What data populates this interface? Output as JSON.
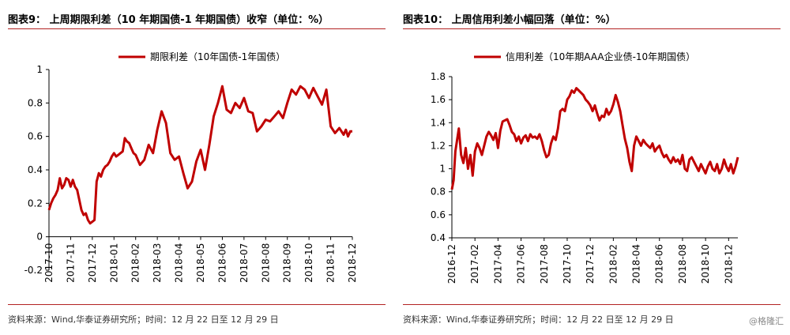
{
  "colors": {
    "line": "#c00000",
    "rule": "#b22222",
    "axis": "#000000"
  },
  "watermark": "@格隆汇",
  "chart_data": [
    {
      "type": "line",
      "figure_title": "图表9：   上周期限利差（10 年期国债-1 年期国债）收窄（单位：%）",
      "title": "",
      "source": "资料来源：Wind,华泰证券研究所；时间：12 月 22 日至 12 月 29 日",
      "xlabel": "",
      "ylabel": "",
      "legend": {
        "position": "top",
        "entries": [
          "期限利差（10年国债-1年国债）"
        ]
      },
      "grid": false,
      "ylim": [
        -0.2,
        1
      ],
      "yticks": [
        "-0.2",
        "0",
        "0.2",
        "0.4",
        "0.6",
        "0.8",
        "1"
      ],
      "xticks": [
        "2017-10",
        "2017-11",
        "2017-12",
        "2018-01",
        "2018-02",
        "2018-03",
        "2018-04",
        "2018-05",
        "2018-06",
        "2018-07",
        "2018-08",
        "2018-09",
        "2018-10",
        "2018-11",
        "2018-12"
      ],
      "series": [
        {
          "name": "期限利差（10年国债-1年国债）",
          "x": [
            0,
            0.1,
            0.2,
            0.3,
            0.4,
            0.5,
            0.6,
            0.7,
            0.8,
            0.9,
            1.0,
            1.1,
            1.2,
            1.3,
            1.4,
            1.5,
            1.6,
            1.7,
            1.8,
            1.9,
            2.0,
            2.1,
            2.2,
            2.3,
            2.4,
            2.5,
            2.6,
            2.7,
            2.8,
            2.9,
            3.0,
            3.1,
            3.2,
            3.3,
            3.4,
            3.5,
            3.6,
            3.7,
            3.8,
            3.9,
            4.0,
            4.2,
            4.4,
            4.6,
            4.8,
            5.0,
            5.2,
            5.4,
            5.6,
            5.8,
            6.0,
            6.2,
            6.4,
            6.6,
            6.8,
            7.0,
            7.2,
            7.4,
            7.6,
            7.8,
            8.0,
            8.2,
            8.4,
            8.6,
            8.8,
            9.0,
            9.2,
            9.4,
            9.6,
            9.8,
            10.0,
            10.2,
            10.4,
            10.6,
            10.8,
            11.0,
            11.2,
            11.4,
            11.6,
            11.8,
            12.0,
            12.2,
            12.4,
            12.6,
            12.8,
            13.0,
            13.2,
            13.4,
            13.6,
            13.7,
            13.8,
            13.9,
            14.0
          ],
          "values": [
            0.16,
            0.2,
            0.23,
            0.25,
            0.28,
            0.35,
            0.29,
            0.31,
            0.35,
            0.34,
            0.3,
            0.34,
            0.3,
            0.28,
            0.22,
            0.16,
            0.13,
            0.14,
            0.1,
            0.08,
            0.09,
            0.1,
            0.33,
            0.38,
            0.36,
            0.4,
            0.42,
            0.43,
            0.45,
            0.48,
            0.5,
            0.48,
            0.49,
            0.5,
            0.51,
            0.59,
            0.57,
            0.56,
            0.53,
            0.5,
            0.49,
            0.43,
            0.46,
            0.55,
            0.5,
            0.64,
            0.75,
            0.68,
            0.5,
            0.46,
            0.48,
            0.38,
            0.29,
            0.33,
            0.45,
            0.52,
            0.4,
            0.55,
            0.72,
            0.8,
            0.9,
            0.76,
            0.74,
            0.8,
            0.77,
            0.83,
            0.75,
            0.74,
            0.63,
            0.66,
            0.7,
            0.69,
            0.72,
            0.75,
            0.71,
            0.8,
            0.88,
            0.85,
            0.9,
            0.88,
            0.83,
            0.89,
            0.84,
            0.79,
            0.88,
            0.66,
            0.62,
            0.65,
            0.61,
            0.64,
            0.6,
            0.63,
            0.63
          ]
        }
      ]
    },
    {
      "type": "line",
      "figure_title": "图表10：   上周信用利差小幅回落（单位：%）",
      "title": "",
      "source": "资料来源：Wind,华泰证券研究所；时间：12 月 22 日至 12 月 29 日",
      "xlabel": "",
      "ylabel": "",
      "legend": {
        "position": "top",
        "entries": [
          "信用利差（10年期AAA企业债-10年期国债）"
        ]
      },
      "grid": false,
      "ylim": [
        0.4,
        1.8
      ],
      "yticks": [
        "0.4",
        "0.6",
        "0.8",
        "1",
        "1.2",
        "1.4",
        "1.6",
        "1.8"
      ],
      "xticks": [
        "2016-12",
        "2017-02",
        "2017-04",
        "2017-06",
        "2017-08",
        "2017-10",
        "2017-12",
        "2018-02",
        "2018-04",
        "2018-06",
        "2018-08",
        "2018-10",
        "2018-12"
      ],
      "series": [
        {
          "name": "信用利差（10年期AAA企业债-10年期国债）",
          "x": [
            0,
            0.15,
            0.3,
            0.45,
            0.6,
            0.8,
            1.0,
            1.2,
            1.4,
            1.6,
            1.8,
            2.0,
            2.2,
            2.4,
            2.6,
            2.8,
            3.0,
            3.2,
            3.4,
            3.6,
            3.8,
            4.0,
            4.2,
            4.4,
            4.6,
            4.8,
            5.0,
            5.2,
            5.4,
            5.6,
            5.8,
            6.0,
            6.2,
            6.4,
            6.6,
            6.8,
            7.0,
            7.2,
            7.4,
            7.6,
            7.8,
            8.0,
            8.2,
            8.4,
            8.6,
            8.8,
            9.0,
            9.2,
            9.4,
            9.6,
            9.8,
            10.0,
            10.2,
            10.4,
            10.6,
            10.8,
            11.0,
            11.2,
            11.4,
            11.6,
            11.8,
            12.0,
            12.2,
            12.4,
            12.6,
            12.8,
            13.0,
            13.2,
            13.4,
            13.6,
            13.8,
            14.0,
            14.2,
            14.4,
            14.6,
            14.8,
            15.0,
            15.2,
            15.4,
            15.6,
            15.8,
            16.0,
            16.2,
            16.4,
            16.6,
            16.8,
            17.0,
            17.2,
            17.4,
            17.6,
            17.8,
            18.0,
            18.2,
            18.4,
            18.6,
            18.8,
            19.0,
            19.2,
            19.4,
            19.6,
            19.8,
            20.0,
            20.2,
            20.4,
            20.6,
            20.8,
            21.0,
            21.2,
            21.4,
            21.6,
            21.8,
            22.0,
            22.2,
            22.4,
            22.6,
            22.8,
            23.0,
            23.2,
            23.4,
            23.6,
            23.8,
            24.0,
            24.2,
            24.4,
            24.6,
            24.8
          ],
          "values": [
            0.82,
            0.9,
            1.15,
            1.25,
            1.35,
            1.12,
            1.05,
            1.18,
            1.0,
            1.12,
            0.94,
            1.15,
            1.22,
            1.18,
            1.12,
            1.2,
            1.28,
            1.32,
            1.29,
            1.25,
            1.31,
            1.18,
            1.33,
            1.41,
            1.42,
            1.43,
            1.38,
            1.32,
            1.3,
            1.24,
            1.28,
            1.22,
            1.27,
            1.29,
            1.24,
            1.3,
            1.27,
            1.28,
            1.26,
            1.3,
            1.24,
            1.16,
            1.1,
            1.12,
            1.22,
            1.28,
            1.25,
            1.35,
            1.5,
            1.52,
            1.5,
            1.6,
            1.63,
            1.68,
            1.66,
            1.7,
            1.68,
            1.66,
            1.64,
            1.6,
            1.58,
            1.55,
            1.5,
            1.55,
            1.48,
            1.42,
            1.46,
            1.45,
            1.52,
            1.47,
            1.5,
            1.56,
            1.64,
            1.58,
            1.5,
            1.38,
            1.26,
            1.18,
            1.06,
            0.98,
            1.2,
            1.28,
            1.24,
            1.2,
            1.25,
            1.22,
            1.2,
            1.18,
            1.22,
            1.15,
            1.18,
            1.2,
            1.14,
            1.1,
            1.12,
            1.08,
            1.05,
            1.1,
            1.06,
            1.08,
            1.04,
            1.12,
            1.0,
            0.98,
            1.08,
            1.1,
            1.06,
            1.02,
            0.98,
            1.04,
            1.0,
            0.96,
            1.02,
            1.06,
            1.0,
            0.98,
            1.04,
            0.96,
            1.0,
            1.08,
            1.02,
            0.98,
            1.04,
            0.96,
            1.02,
            1.1
          ],
          "x_per_month": 2
        }
      ]
    }
  ]
}
